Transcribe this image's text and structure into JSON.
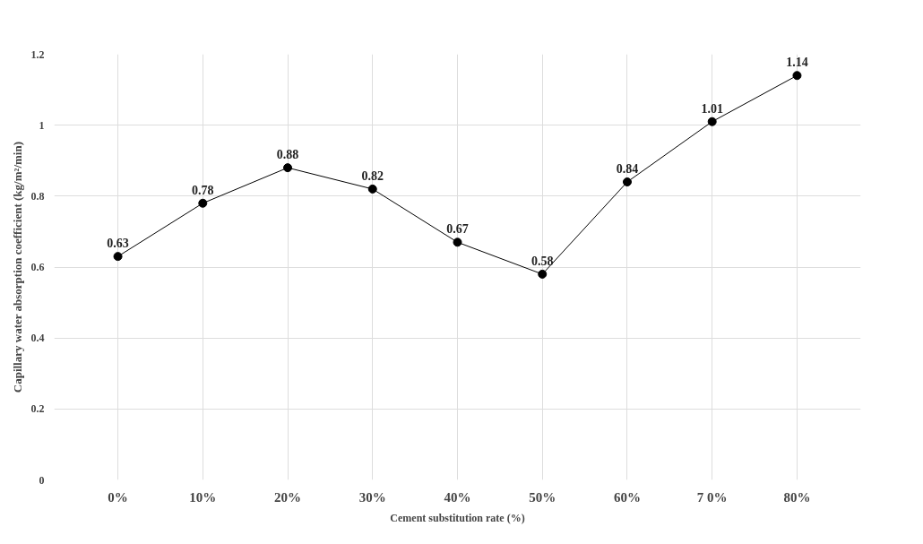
{
  "chart_data": {
    "type": "line",
    "xlabel": "Cement substitution rate (%)",
    "ylabel": "Capillary water absorption coefficient (kg/m²/min)",
    "categories": [
      "0%",
      "10%",
      "20%",
      "30%",
      "40%",
      "50%",
      "60%",
      "7 0%",
      "80%"
    ],
    "series": [
      {
        "color": "#000000",
        "values": [
          0.63,
          0.78,
          0.88,
          0.82,
          0.67,
          0.58,
          0.84,
          1.01,
          1.14
        ]
      }
    ],
    "ylim": [
      0,
      1.2
    ],
    "yticks": [
      0,
      0.2,
      0.4,
      0.6,
      0.8,
      1,
      1.2
    ],
    "grid": true,
    "data_labels": true,
    "marker": "circle",
    "line_style": "solid"
  }
}
